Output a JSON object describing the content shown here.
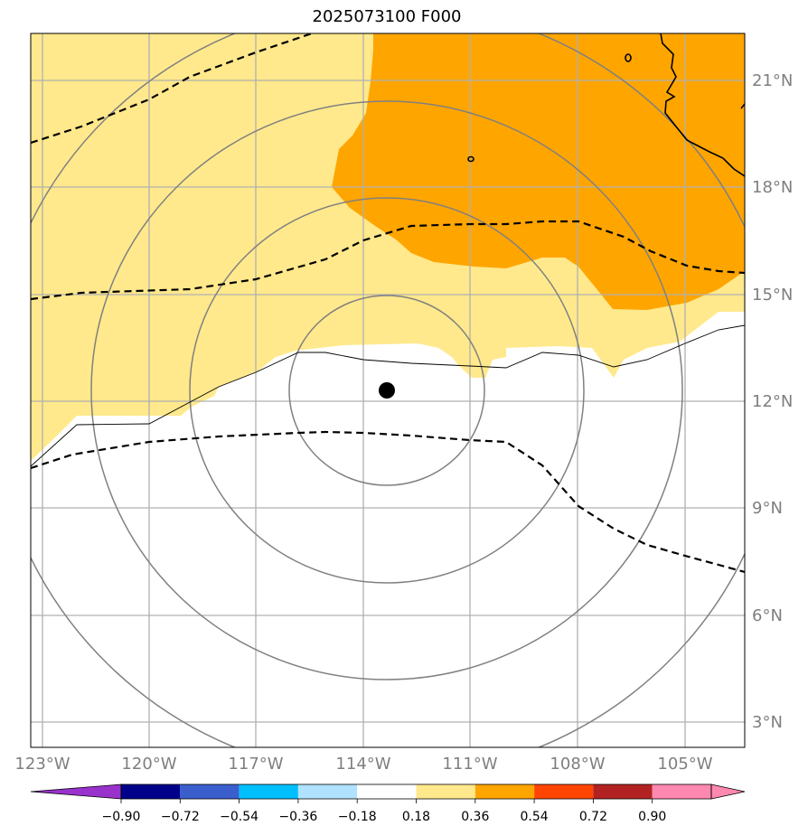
{
  "title": "2025073100 F000",
  "map": {
    "lon_range": [
      -123.2,
      -103.2
    ],
    "lat_range": [
      2.3,
      22.3
    ],
    "lon_ticks": [
      "123°W",
      "120°W",
      "117°W",
      "114°W",
      "111°W",
      "108°W",
      "105°W"
    ],
    "lat_ticks": [
      "21°N",
      "18°N",
      "15°N",
      "12°N",
      "9°N",
      "6°N",
      "3°N"
    ],
    "storm_center": {
      "lon": -113.3,
      "lat": 12.3
    },
    "range_rings": "concentric circles around storm center"
  },
  "colorbar": {
    "ticks": [
      "−0.90",
      "−0.72",
      "−0.54",
      "−0.36",
      "−0.18",
      "0.18",
      "0.36",
      "0.54",
      "0.72",
      "0.90"
    ],
    "colors": [
      "#9932cc",
      "#00008b",
      "#3a5fcd",
      "#00bfff",
      "#b0e2ff",
      "#ffffff",
      "#ffe98c",
      "#ffa500",
      "#ff4500",
      "#b22222",
      "#ff88b0"
    ]
  }
}
